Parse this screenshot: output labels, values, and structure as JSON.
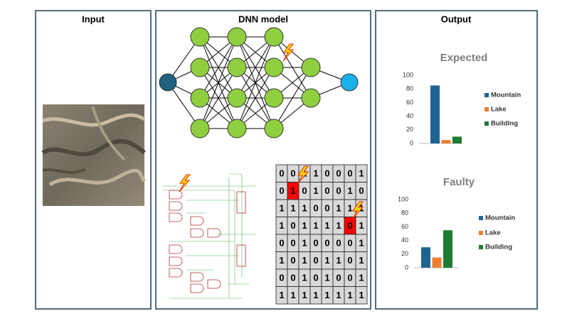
{
  "panels": {
    "input": {
      "title": "Input"
    },
    "model": {
      "title": "DNN model"
    },
    "output": {
      "title": "Output"
    }
  },
  "bit_grid": {
    "rows": [
      [
        0,
        0,
        1,
        1,
        0,
        0,
        0,
        1
      ],
      [
        0,
        1,
        0,
        1,
        0,
        0,
        1,
        0
      ],
      [
        1,
        1,
        1,
        0,
        0,
        1,
        1,
        1
      ],
      [
        1,
        0,
        1,
        1,
        1,
        1,
        0,
        1
      ],
      [
        0,
        0,
        1,
        0,
        0,
        0,
        0,
        1
      ],
      [
        1,
        0,
        1,
        0,
        1,
        1,
        0,
        1
      ],
      [
        0,
        0,
        1,
        0,
        1,
        0,
        0,
        1
      ],
      [
        1,
        1,
        1,
        1,
        1,
        1,
        1,
        1
      ]
    ],
    "faulty_cells": [
      [
        1,
        1
      ],
      [
        3,
        6
      ]
    ],
    "cell_color": "#d9d9d9",
    "faulty_color": "#ff0000"
  },
  "chart_data": [
    {
      "type": "bar",
      "title": "Expected",
      "categories": [
        "Mountain",
        "Lake",
        "Building"
      ],
      "values": [
        85,
        5,
        10
      ],
      "colors": [
        "#1f6391",
        "#ed7d31",
        "#1e7b34"
      ],
      "ylim": [
        0,
        100
      ],
      "yticks": [
        0,
        20,
        40,
        60,
        80,
        100
      ],
      "grid": false,
      "legend": "right"
    },
    {
      "type": "bar",
      "title": "Faulty",
      "categories": [
        "Mountain",
        "Lake",
        "Building"
      ],
      "values": [
        30,
        15,
        55
      ],
      "colors": [
        "#1f6391",
        "#ed7d31",
        "#1e7b34"
      ],
      "ylim": [
        0,
        100
      ],
      "yticks": [
        0,
        20,
        40,
        60,
        80,
        100
      ],
      "grid": false,
      "legend": "right"
    }
  ]
}
